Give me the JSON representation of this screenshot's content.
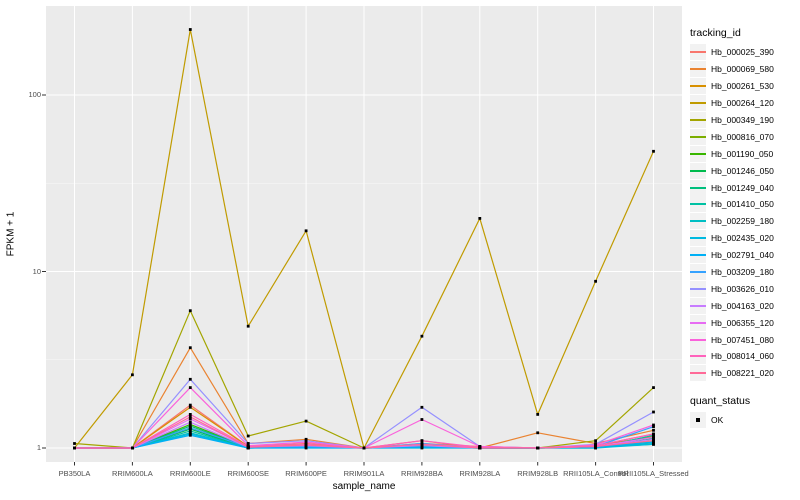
{
  "figure": {
    "panel_bg": "#EBEBEB",
    "grid_major_color": "#FFFFFF",
    "grid_minor_color": "#FFFFFF",
    "tick_mark_color": "#333333",
    "tick_label_color": "#4D4D4D",
    "point_color": "#000000",
    "legend_key_bg": "#F2F2F2"
  },
  "chart_data": {
    "type": "line",
    "title": "",
    "xlabel": "sample_name",
    "ylabel": "FPKM + 1",
    "y_scale": "log10",
    "y_ticks": [
      1,
      10,
      100
    ],
    "y_minor_ticks": [
      3.1623,
      31.623
    ],
    "ylim": [
      0.85,
      300
    ],
    "grid": true,
    "legend_position": "right",
    "legend_title": "tracking_id",
    "point_legend": {
      "title": "quant_status",
      "label": "OK",
      "marker": "black-square"
    },
    "categories": [
      "PB350LA",
      "RRIM600LA",
      "RRIM600LE",
      "RRIM600SE",
      "RRIM600PE",
      "RRIM901LA",
      "RRIM928BA",
      "RRIM928LA",
      "RRIM928LB",
      "RRII105LA_Control",
      "RRII105LA_Stressed"
    ],
    "series": [
      {
        "name": "Hb_000025_390",
        "color": "#F8766D",
        "values": [
          1.0,
          1.0,
          1.75,
          1.02,
          1.06,
          1.0,
          1.06,
          1.02,
          1.0,
          1.03,
          1.2
        ]
      },
      {
        "name": "Hb_000069_580",
        "color": "#EA8331",
        "values": [
          1.0,
          1.0,
          3.7,
          1.06,
          1.12,
          1.0,
          1.1,
          1.0,
          1.22,
          1.06,
          1.26
        ]
      },
      {
        "name": "Hb_000261_530",
        "color": "#D89000",
        "values": [
          1.0,
          1.0,
          1.7,
          1.02,
          1.05,
          1.0,
          1.04,
          1.01,
          1.0,
          1.03,
          1.16
        ]
      },
      {
        "name": "Hb_000264_120",
        "color": "#C09B00",
        "values": [
          1.0,
          2.6,
          235.0,
          4.9,
          17.0,
          1.0,
          4.3,
          20.0,
          1.55,
          8.8,
          48.0
        ]
      },
      {
        "name": "Hb_000349_190",
        "color": "#A3A500",
        "values": [
          1.06,
          1.0,
          6.0,
          1.17,
          1.42,
          1.0,
          1.03,
          1.0,
          1.0,
          1.1,
          2.2
        ]
      },
      {
        "name": "Hb_000816_070",
        "color": "#7CAE00",
        "values": [
          1.0,
          1.0,
          1.3,
          1.01,
          1.02,
          1.0,
          1.01,
          1.0,
          1.0,
          1.02,
          1.1
        ]
      },
      {
        "name": "Hb_001190_050",
        "color": "#39B600",
        "values": [
          1.0,
          1.0,
          1.36,
          1.01,
          1.03,
          1.0,
          1.02,
          1.0,
          1.0,
          1.01,
          1.08
        ]
      },
      {
        "name": "Hb_001246_050",
        "color": "#00BB4E",
        "values": [
          1.0,
          1.0,
          1.28,
          1.0,
          1.02,
          1.0,
          1.01,
          1.0,
          1.0,
          1.01,
          1.05
        ]
      },
      {
        "name": "Hb_001249_040",
        "color": "#00BF7D",
        "values": [
          1.0,
          1.0,
          1.33,
          1.01,
          1.02,
          1.0,
          1.02,
          1.0,
          1.0,
          1.01,
          1.13
        ]
      },
      {
        "name": "Hb_001410_050",
        "color": "#00C1A3",
        "values": [
          1.0,
          1.0,
          1.25,
          1.0,
          1.01,
          1.0,
          1.01,
          1.0,
          1.0,
          1.0,
          1.18
        ]
      },
      {
        "name": "Hb_002259_180",
        "color": "#00BFC4",
        "values": [
          1.0,
          1.0,
          1.22,
          1.0,
          1.01,
          1.0,
          1.01,
          1.0,
          1.0,
          1.01,
          1.06
        ]
      },
      {
        "name": "Hb_002435_020",
        "color": "#00BAE0",
        "values": [
          1.0,
          1.0,
          1.2,
          1.0,
          1.01,
          1.0,
          1.0,
          1.0,
          1.0,
          1.0,
          1.05
        ]
      },
      {
        "name": "Hb_002791_040",
        "color": "#00B0F6",
        "values": [
          1.0,
          1.0,
          1.18,
          1.0,
          1.0,
          1.0,
          1.01,
          1.0,
          1.0,
          1.01,
          1.08
        ]
      },
      {
        "name": "Hb_003209_180",
        "color": "#35A2FF",
        "values": [
          1.0,
          1.0,
          1.3,
          1.01,
          1.02,
          1.0,
          1.06,
          1.0,
          1.0,
          1.02,
          1.32
        ]
      },
      {
        "name": "Hb_003626_010",
        "color": "#9590FF",
        "values": [
          1.0,
          1.0,
          2.45,
          1.06,
          1.1,
          1.0,
          1.7,
          1.02,
          1.0,
          1.05,
          1.6
        ]
      },
      {
        "name": "Hb_004163_020",
        "color": "#C77CFF",
        "values": [
          1.0,
          1.0,
          1.4,
          1.01,
          1.03,
          1.0,
          1.03,
          1.0,
          1.0,
          1.02,
          1.12
        ]
      },
      {
        "name": "Hb_006355_120",
        "color": "#E76BF3",
        "values": [
          1.0,
          1.0,
          1.46,
          1.02,
          1.04,
          1.0,
          1.05,
          1.01,
          1.0,
          1.02,
          1.15
        ]
      },
      {
        "name": "Hb_007451_080",
        "color": "#FA62DB",
        "values": [
          1.0,
          1.0,
          2.2,
          1.03,
          1.08,
          1.0,
          1.45,
          1.02,
          1.0,
          1.04,
          1.35
        ]
      },
      {
        "name": "Hb_008014_060",
        "color": "#FF62BC",
        "values": [
          1.0,
          1.0,
          1.55,
          1.02,
          1.05,
          1.0,
          1.1,
          1.01,
          1.0,
          1.03,
          1.2
        ]
      },
      {
        "name": "Hb_008221_020",
        "color": "#FF6A98",
        "values": [
          1.0,
          1.0,
          1.5,
          1.01,
          1.04,
          1.0,
          1.05,
          1.0,
          1.0,
          1.02,
          1.1
        ]
      }
    ]
  }
}
